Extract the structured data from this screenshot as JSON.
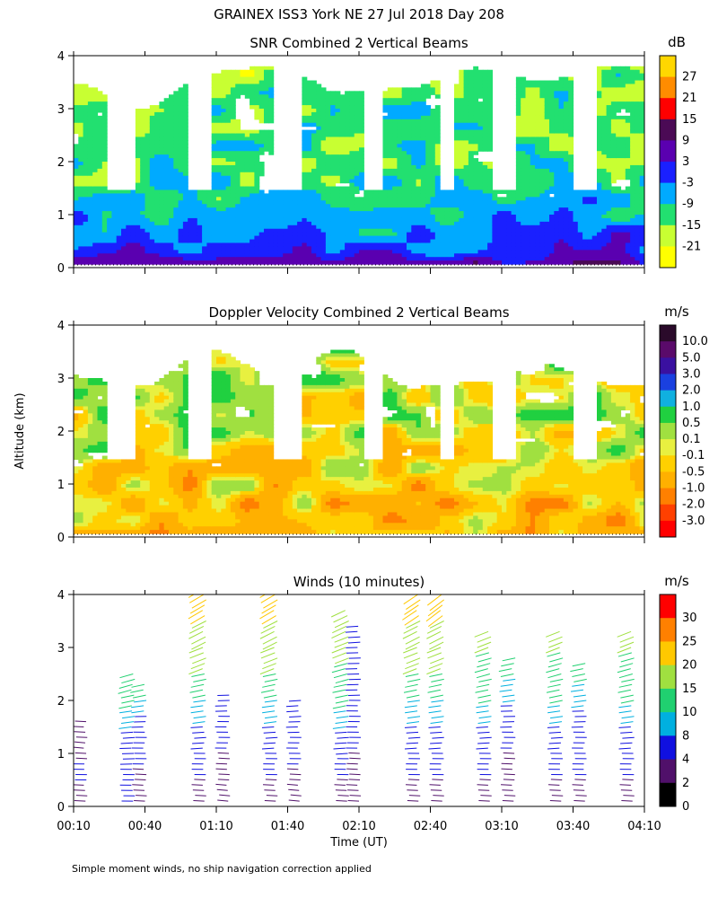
{
  "figure": {
    "title": "GRAINEX ISS3 York NE  27 Jul 2018 Day 208",
    "ylabel": "Altitude (km)",
    "xlabel": "Time (UT)",
    "footnote": "Simple moment winds, no ship navigation correction applied"
  },
  "chart_data": [
    {
      "type": "heatmap",
      "title": "SNR Combined 2 Vertical Beams",
      "xlabel": "Time (UT)",
      "ylabel": "Altitude (km)",
      "x_ticks": [
        "00:10",
        "00:40",
        "01:10",
        "01:40",
        "02:10",
        "02:40",
        "03:10",
        "03:40",
        "04:10"
      ],
      "y_ticks": [
        "0",
        "1",
        "2",
        "3",
        "4"
      ],
      "xlim": [
        "00:10",
        "04:10"
      ],
      "ylim": [
        0,
        4
      ],
      "colorbar": {
        "unit": "dB",
        "levels": [
          "27",
          "21",
          "15",
          "9",
          "3",
          "-3",
          "-9",
          "-15",
          "-21"
        ],
        "colors": [
          "#ffd700",
          "#ff8c00",
          "#ff0000",
          "#4b0a55",
          "#5a00b0",
          "#1a20ff",
          "#00aaff",
          "#22e070",
          "#c8ff32",
          "#ffff00"
        ]
      },
      "profile": {
        "altitude_km": [
          0.1,
          0.3,
          0.6,
          1.0,
          1.5,
          2.0,
          2.5,
          3.0,
          3.5,
          4.0
        ],
        "typical_snr_db": [
          6,
          0,
          -3,
          -6,
          -10,
          -12,
          -14,
          -13,
          -15,
          -18
        ]
      }
    },
    {
      "type": "heatmap",
      "title": "Doppler Velocity Combined 2 Vertical Beams",
      "xlabel": "Time (UT)",
      "ylabel": "Altitude (km)",
      "x_ticks": [
        "00:10",
        "00:40",
        "01:10",
        "01:40",
        "02:10",
        "02:40",
        "03:10",
        "03:40",
        "04:10"
      ],
      "y_ticks": [
        "0",
        "1",
        "2",
        "3",
        "4"
      ],
      "xlim": [
        "00:10",
        "04:10"
      ],
      "ylim": [
        0,
        4
      ],
      "colorbar": {
        "unit": "m/s",
        "levels": [
          "10.0",
          "5.0",
          "3.0",
          "2.0",
          "1.0",
          "0.5",
          "0.1",
          "-0.1",
          "-0.5",
          "-1.0",
          "-2.0",
          "-3.0"
        ],
        "colors": [
          "#2a0a2a",
          "#5a0a6a",
          "#3a10a0",
          "#1a40e0",
          "#10b0e0",
          "#20d040",
          "#a0e040",
          "#e8f040",
          "#ffd000",
          "#ffb000",
          "#ff8000",
          "#ff4000",
          "#ff0000"
        ]
      },
      "profile": {
        "altitude_km": [
          0.1,
          0.5,
          1.0,
          1.5,
          2.0,
          2.5,
          3.0,
          3.5,
          4.0
        ],
        "typical_velocity_ms": [
          -0.6,
          -0.5,
          -0.4,
          -0.2,
          0.0,
          0.1,
          0.2,
          0.3,
          0.0
        ]
      }
    },
    {
      "type": "scatter",
      "title": "Winds (10 minutes)",
      "xlabel": "Time (UT)",
      "ylabel": "Altitude (km)",
      "x_ticks": [
        "00:10",
        "00:40",
        "01:10",
        "01:40",
        "02:10",
        "02:40",
        "03:10",
        "03:40",
        "04:10"
      ],
      "y_ticks": [
        "0",
        "1",
        "2",
        "3",
        "4"
      ],
      "xlim": [
        "00:10",
        "04:10"
      ],
      "ylim": [
        0,
        4
      ],
      "colorbar": {
        "unit": "m/s",
        "levels": [
          "30",
          "25",
          "20",
          "15",
          "10",
          "8",
          "4",
          "2",
          "0"
        ],
        "colors": [
          "#ff0000",
          "#ff8000",
          "#ffc800",
          "#a0e040",
          "#20d070",
          "#00b0e0",
          "#1010e0",
          "#50106a",
          "#000000"
        ]
      },
      "profiles": [
        {
          "time": "00:15",
          "top_km": 1.7,
          "speed_ms": [
            3,
            3,
            4,
            4,
            3,
            2,
            3,
            3
          ]
        },
        {
          "time": "00:35",
          "top_km": 2.55,
          "speed_ms": [
            4,
            4,
            5,
            6,
            8,
            10,
            12
          ]
        },
        {
          "time": "00:40",
          "top_km": 2.35,
          "speed_ms": [
            3,
            3,
            4,
            4,
            5,
            8,
            10
          ]
        },
        {
          "time": "01:05",
          "top_km": 4.1,
          "speed_ms": [
            3,
            4,
            6,
            8,
            10,
            15,
            18,
            20
          ]
        },
        {
          "time": "01:15",
          "top_km": 2.1,
          "speed_ms": [
            2,
            3,
            3,
            4,
            4,
            5
          ]
        },
        {
          "time": "01:35",
          "top_km": 4.1,
          "speed_ms": [
            3,
            4,
            6,
            8,
            10,
            15,
            18,
            20
          ]
        },
        {
          "time": "01:45",
          "top_km": 2.0,
          "speed_ms": [
            2,
            3,
            4,
            4,
            5,
            6
          ]
        },
        {
          "time": "02:05",
          "top_km": 3.7,
          "speed_ms": [
            3,
            4,
            6,
            8,
            10,
            12,
            15,
            17
          ]
        },
        {
          "time": "02:10",
          "top_km": 3.5,
          "speed_ms": [
            3,
            3,
            4,
            4,
            5,
            5,
            6
          ]
        },
        {
          "time": "02:35",
          "top_km": 4.0,
          "speed_ms": [
            3,
            4,
            6,
            8,
            10,
            15,
            18,
            22
          ]
        },
        {
          "time": "02:45",
          "top_km": 4.0,
          "speed_ms": [
            3,
            4,
            6,
            8,
            10,
            15,
            18,
            24
          ]
        },
        {
          "time": "03:05",
          "top_km": 3.35,
          "speed_ms": [
            3,
            4,
            6,
            8,
            10,
            12,
            15
          ]
        },
        {
          "time": "03:15",
          "top_km": 2.85,
          "speed_ms": [
            3,
            3,
            4,
            5,
            8,
            10
          ]
        },
        {
          "time": "03:35",
          "top_km": 3.35,
          "speed_ms": [
            3,
            4,
            6,
            8,
            10,
            12,
            15
          ]
        },
        {
          "time": "03:45",
          "top_km": 2.75,
          "speed_ms": [
            3,
            4,
            4,
            5,
            8,
            10
          ]
        },
        {
          "time": "04:05",
          "top_km": 3.35,
          "speed_ms": [
            3,
            4,
            6,
            8,
            10,
            12,
            15
          ]
        }
      ]
    }
  ]
}
